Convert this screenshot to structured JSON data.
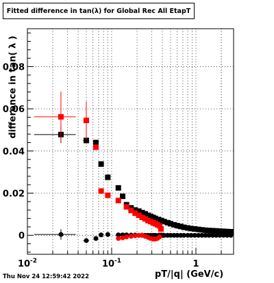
{
  "chart_data": {
    "type": "scatter",
    "title": "Fitted difference in tan(λ) for Global Rec All EtapT",
    "xlabel": "pT/|q| (GeV/c)",
    "ylabel": "difference in tan( λ )",
    "xscale": "log",
    "xlim": [
      0.01,
      2.8
    ],
    "ylim": [
      -0.009,
      0.098
    ],
    "grid": true,
    "x_ticks": [
      {
        "value": 0.01,
        "label": "10⁻²"
      },
      {
        "value": 0.1,
        "label": "10⁻¹"
      },
      {
        "value": 1,
        "label": "1"
      }
    ],
    "y_ticks": [
      {
        "value": 0,
        "label": "0"
      },
      {
        "value": 0.02,
        "label": "0.02"
      },
      {
        "value": 0.04,
        "label": "0.04"
      },
      {
        "value": 0.06,
        "label": "0.06"
      },
      {
        "value": 0.08,
        "label": "0.08"
      }
    ],
    "series": [
      {
        "color": "#000000",
        "marker": "square",
        "points": [
          {
            "x": 0.025,
            "y": 0.0478,
            "xlo": 0.012,
            "xhi": 0.0375,
            "yerr": 0.004
          },
          {
            "x": 0.05,
            "y": 0.045,
            "xerr": 0.004
          },
          {
            "x": 0.065,
            "y": 0.044
          },
          {
            "x": 0.075,
            "y": 0.0338
          },
          {
            "x": 0.09,
            "y": 0.0275
          },
          {
            "x": 0.12,
            "y": 0.0225
          },
          {
            "x": 0.135,
            "y": 0.0185
          },
          {
            "x": 0.15,
            "y": 0.0145
          },
          {
            "x": 0.17,
            "y": 0.013
          },
          {
            "x": 0.19,
            "y": 0.012
          },
          {
            "x": 0.21,
            "y": 0.0115
          },
          {
            "x": 0.23,
            "y": 0.0108
          },
          {
            "x": 0.25,
            "y": 0.0102
          },
          {
            "x": 0.27,
            "y": 0.0095
          },
          {
            "x": 0.29,
            "y": 0.009
          },
          {
            "x": 0.31,
            "y": 0.0085
          },
          {
            "x": 0.33,
            "y": 0.008
          },
          {
            "x": 0.36,
            "y": 0.0075
          },
          {
            "x": 0.39,
            "y": 0.007
          },
          {
            "x": 0.42,
            "y": 0.0065
          },
          {
            "x": 0.46,
            "y": 0.006
          },
          {
            "x": 0.5,
            "y": 0.0055
          },
          {
            "x": 0.55,
            "y": 0.005
          },
          {
            "x": 0.6,
            "y": 0.0046
          },
          {
            "x": 0.66,
            "y": 0.0042
          },
          {
            "x": 0.72,
            "y": 0.0038
          },
          {
            "x": 0.8,
            "y": 0.0035
          },
          {
            "x": 0.88,
            "y": 0.0032
          },
          {
            "x": 0.97,
            "y": 0.003
          },
          {
            "x": 1.07,
            "y": 0.0028
          },
          {
            "x": 1.18,
            "y": 0.0026
          },
          {
            "x": 1.3,
            "y": 0.0024
          },
          {
            "x": 1.43,
            "y": 0.0023
          },
          {
            "x": 1.58,
            "y": 0.0022
          },
          {
            "x": 1.74,
            "y": 0.0021
          },
          {
            "x": 1.92,
            "y": 0.002
          },
          {
            "x": 2.12,
            "y": 0.0019
          },
          {
            "x": 2.35,
            "y": 0.0018
          },
          {
            "x": 2.6,
            "y": 0.0017
          }
        ]
      },
      {
        "color": "#ff0000",
        "marker": "square",
        "points": [
          {
            "x": 0.025,
            "y": 0.0562,
            "xlo": 0.012,
            "xhi": 0.0375,
            "yerr": 0.012
          },
          {
            "x": 0.05,
            "y": 0.0545,
            "xerr": 0.004,
            "yerr": 0.009
          },
          {
            "x": 0.065,
            "y": 0.0418
          },
          {
            "x": 0.075,
            "y": 0.021
          },
          {
            "x": 0.09,
            "y": 0.019
          },
          {
            "x": 0.12,
            "y": 0.0165
          },
          {
            "x": 0.15,
            "y": 0.0135
          },
          {
            "x": 0.17,
            "y": 0.0118
          },
          {
            "x": 0.19,
            "y": 0.0105
          },
          {
            "x": 0.21,
            "y": 0.0095
          },
          {
            "x": 0.23,
            "y": 0.0085
          },
          {
            "x": 0.25,
            "y": 0.0078
          },
          {
            "x": 0.27,
            "y": 0.007
          },
          {
            "x": 0.29,
            "y": 0.0065
          },
          {
            "x": 0.31,
            "y": 0.006
          },
          {
            "x": 0.33,
            "y": 0.0055
          },
          {
            "x": 0.35,
            "y": 0.005
          },
          {
            "x": 0.37,
            "y": 0.0045
          },
          {
            "x": 0.385,
            "y": 0.003
          },
          {
            "x": 0.385,
            "y": 0.0
          }
        ]
      },
      {
        "color": "#000000",
        "marker": "circle",
        "points": [
          {
            "x": 0.025,
            "y": 0.0004,
            "xlo": 0.012,
            "xhi": 0.0375,
            "yerr": 0.0025
          },
          {
            "x": 0.05,
            "y": -0.0025,
            "xerr": 0.004
          },
          {
            "x": 0.065,
            "y": -0.0015
          },
          {
            "x": 0.075,
            "y": 0.0002
          },
          {
            "x": 0.09,
            "y": 0.0004
          },
          {
            "x": 0.12,
            "y": 0.0002
          },
          {
            "x": 0.135,
            "y": 0.0002
          },
          {
            "x": 0.15,
            "y": 0.0002
          },
          {
            "x": 0.17,
            "y": 0.0001
          },
          {
            "x": 0.19,
            "y": 0.0001
          },
          {
            "x": 0.21,
            "y": 0.0
          },
          {
            "x": 0.23,
            "y": 0.0
          },
          {
            "x": 0.25,
            "y": 0.0
          },
          {
            "x": 0.27,
            "y": 0.0
          },
          {
            "x": 0.29,
            "y": 0.0
          },
          {
            "x": 0.31,
            "y": 0.0
          },
          {
            "x": 0.33,
            "y": 0.0
          },
          {
            "x": 0.36,
            "y": 0.0
          },
          {
            "x": 0.39,
            "y": 0.0
          },
          {
            "x": 0.42,
            "y": 0.0
          },
          {
            "x": 0.46,
            "y": 0.0
          },
          {
            "x": 0.5,
            "y": 0.0
          },
          {
            "x": 0.55,
            "y": 0.0
          },
          {
            "x": 0.6,
            "y": 0.0
          },
          {
            "x": 0.66,
            "y": 0.0
          },
          {
            "x": 0.72,
            "y": 0.0
          },
          {
            "x": 0.8,
            "y": 0.0
          },
          {
            "x": 0.88,
            "y": 0.0
          },
          {
            "x": 0.97,
            "y": 0.0
          },
          {
            "x": 1.07,
            "y": 0.0
          },
          {
            "x": 1.18,
            "y": 0.0
          },
          {
            "x": 1.3,
            "y": 0.0
          },
          {
            "x": 1.43,
            "y": 0.0
          },
          {
            "x": 1.58,
            "y": 0.0
          },
          {
            "x": 1.74,
            "y": 0.0
          },
          {
            "x": 1.92,
            "y": 0.0
          },
          {
            "x": 2.12,
            "y": 0.0
          },
          {
            "x": 2.35,
            "y": 0.0
          },
          {
            "x": 2.6,
            "y": 0.0
          }
        ]
      },
      {
        "color": "#ff0000",
        "marker": "circle",
        "points": [
          {
            "x": 0.12,
            "y": -0.0015
          },
          {
            "x": 0.135,
            "y": -0.0012
          },
          {
            "x": 0.15,
            "y": -0.0008
          },
          {
            "x": 0.17,
            "y": -0.0005
          },
          {
            "x": 0.19,
            "y": -0.0002
          },
          {
            "x": 0.21,
            "y": 0.0
          },
          {
            "x": 0.23,
            "y": 0.0001
          },
          {
            "x": 0.25,
            "y": -0.0005
          },
          {
            "x": 0.27,
            "y": -0.001
          },
          {
            "x": 0.29,
            "y": -0.0015
          },
          {
            "x": 0.31,
            "y": -0.0018
          },
          {
            "x": 0.33,
            "y": -0.0018
          },
          {
            "x": 0.35,
            "y": -0.0015
          },
          {
            "x": 0.37,
            "y": -0.0008
          }
        ]
      }
    ]
  },
  "footer": {
    "timestamp": "Thu Nov 24 12:59:42 2022"
  }
}
